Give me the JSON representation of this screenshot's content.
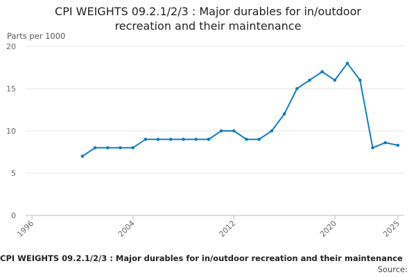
{
  "chart_data": {
    "type": "line",
    "title": "CPI WEIGHTS 09.2.1/2/3 : Major durables for in/outdoor recreation and their maintenance",
    "y_label": "Parts per 1000",
    "footer_title": "CPI WEIGHTS 09.2.1/2/3 : Major durables for in/outdoor recreation and their maintenance",
    "source": "Source:",
    "x": [
      2000,
      2001,
      2002,
      2003,
      2004,
      2005,
      2006,
      2007,
      2008,
      2009,
      2010,
      2011,
      2012,
      2013,
      2014,
      2015,
      2016,
      2017,
      2018,
      2019,
      2020,
      2021,
      2022,
      2023,
      2024,
      2025
    ],
    "series": [
      {
        "name": "CPI WEIGHTS 09.2.1/2/3",
        "color": "#0f7bc0",
        "values": [
          7,
          8,
          8,
          8,
          8,
          9,
          9,
          9,
          9,
          9,
          9,
          10,
          10,
          9,
          9,
          10,
          12,
          15,
          16,
          17,
          16,
          18,
          16,
          8,
          8.6,
          8.3
        ]
      }
    ],
    "xlim": [
      1995.5,
      2025.5
    ],
    "xticks": [
      1996,
      2004,
      2012,
      2020,
      2025
    ],
    "ylim": [
      0,
      20
    ],
    "yticks": [
      0,
      5,
      10,
      15,
      20
    ],
    "grid": true
  }
}
